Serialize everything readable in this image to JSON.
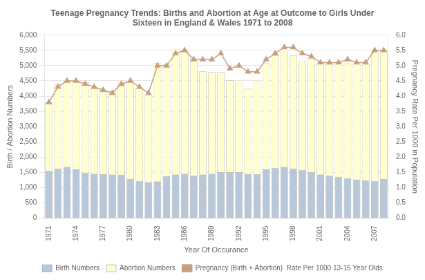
{
  "chart_data": {
    "type": "bar",
    "title": "Teenage Pregnancy Trends: Births and Abortion at Age at Outcome to Girls Under\nSixteen in England & Wales 1971 to 2008",
    "xlabel": "Year Of Occurance",
    "ylabel": "Birth / Abortion Numbers",
    "y2label": "Pregnancy Rate Per 1000 in Population",
    "x": [
      1971,
      1972,
      1973,
      1974,
      1975,
      1976,
      1977,
      1978,
      1979,
      1980,
      1981,
      1982,
      1983,
      1984,
      1985,
      1986,
      1987,
      1988,
      1989,
      1990,
      1991,
      1992,
      1993,
      1994,
      1995,
      1996,
      1997,
      1998,
      1999,
      2000,
      2001,
      2002,
      2003,
      2004,
      2005,
      2006,
      2007,
      2008
    ],
    "xlim": [
      1970.5,
      2008.5
    ],
    "xticks": [
      1971,
      1974,
      1977,
      1980,
      1983,
      1986,
      1989,
      1992,
      1995,
      1998,
      2001,
      2004,
      2007
    ],
    "ylim": [
      0,
      6000
    ],
    "yticks": [
      0,
      500,
      {
        "value": 1000,
        "label": "1,000"
      },
      {
        "value": 1500,
        "label": "1,500"
      },
      {
        "value": 2000,
        "label": "2,000"
      },
      {
        "value": 2500,
        "label": "2,500"
      },
      {
        "value": 3000,
        "label": "3,000"
      },
      {
        "value": 3500,
        "label": "3,500"
      },
      {
        "value": 4000,
        "label": "4,000"
      },
      {
        "value": 4500,
        "label": "4,500"
      },
      {
        "value": 5000,
        "label": "5,000"
      },
      {
        "value": 5500,
        "label": "5,500"
      },
      {
        "value": 6000,
        "label": "6,000"
      }
    ],
    "y2lim": [
      0.0,
      6.0
    ],
    "y2ticks": [
      {
        "value": 0,
        "label": "0.0"
      },
      0.5,
      {
        "value": 1,
        "label": "1.0"
      },
      1.5,
      {
        "value": 2,
        "label": "2.0"
      },
      2.5,
      {
        "value": 3,
        "label": "3.0"
      },
      3.5,
      {
        "value": 4,
        "label": "4.0"
      },
      4.5,
      {
        "value": 5,
        "label": "5.0"
      },
      5.5,
      {
        "value": 6,
        "label": "6.0"
      }
    ],
    "stacked": true,
    "grid": "y",
    "legend": "bottom",
    "series": [
      {
        "name": "Birth Numbers",
        "type": "bar",
        "color": "#b8c8d8",
        "values": [
          1550,
          1620,
          1680,
          1600,
          1490,
          1450,
          1440,
          1430,
          1420,
          1280,
          1220,
          1180,
          1200,
          1370,
          1430,
          1450,
          1390,
          1430,
          1450,
          1500,
          1500,
          1500,
          1450,
          1440,
          1600,
          1650,
          1680,
          1620,
          1580,
          1500,
          1430,
          1390,
          1350,
          1310,
          1260,
          1240,
          1220,
          1280
        ]
      },
      {
        "name": "Abortion Numbers",
        "type": "bar",
        "color": "#ffffd0",
        "values": [
          2250,
          2760,
          2810,
          2900,
          2960,
          2830,
          2760,
          2720,
          3040,
          3200,
          3060,
          2870,
          3880,
          3660,
          4120,
          4050,
          3830,
          3380,
          3340,
          3290,
          3010,
          2960,
          2800,
          3040,
          3480,
          3680,
          3780,
          3720,
          3580,
          3700,
          3670,
          3660,
          3750,
          3750,
          3800,
          3820,
          4240,
          4240
        ]
      },
      {
        "name": "Pregnancy (Birth + Abortion)  Rate Per 1000 13-15 Year Olds",
        "type": "line",
        "axis": "y2",
        "color": "#c8a080",
        "marker": "triangle",
        "values": [
          3.8,
          4.3,
          4.5,
          4.5,
          4.4,
          4.3,
          4.2,
          4.1,
          4.4,
          4.5,
          4.3,
          4.1,
          5.0,
          5.0,
          5.4,
          5.5,
          5.2,
          5.2,
          5.2,
          5.4,
          4.9,
          5.0,
          4.8,
          4.8,
          5.2,
          5.4,
          5.6,
          5.6,
          5.4,
          5.3,
          5.1,
          5.1,
          5.1,
          5.2,
          5.1,
          5.1,
          5.5,
          5.5
        ]
      }
    ]
  }
}
